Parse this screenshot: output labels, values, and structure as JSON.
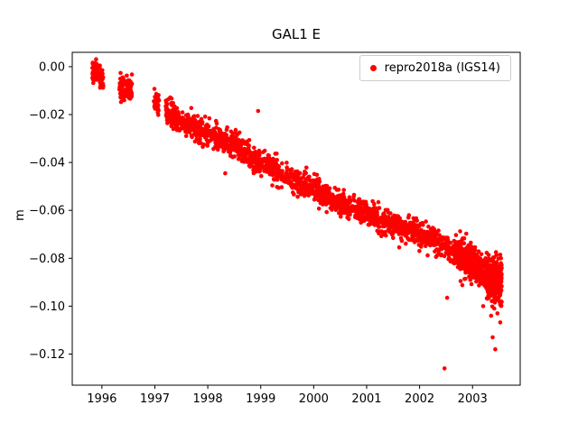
{
  "chart_data": {
    "type": "scatter",
    "title": "GAL1 E",
    "xlabel": "",
    "ylabel": "m",
    "xlim": [
      1995.44,
      2003.9
    ],
    "ylim": [
      -0.133,
      0.006
    ],
    "xticks": [
      1996,
      1997,
      1998,
      1999,
      2000,
      2001,
      2002,
      2003
    ],
    "yticks": [
      0.0,
      -0.02,
      -0.04,
      -0.06,
      -0.08,
      -0.1,
      -0.12
    ],
    "grid": false,
    "legend_position": "upper right",
    "series": [
      {
        "name": "repro2018a (IGS14)",
        "color": "#ff0000",
        "marker": "dot",
        "marker_radius_px": 2.3,
        "noise_std": 0.0025,
        "trend": [
          [
            1995.85,
            -0.002
          ],
          [
            1996.0,
            -0.006
          ],
          [
            1996.45,
            -0.009
          ],
          [
            1997.0,
            -0.014
          ],
          [
            1997.3,
            -0.02
          ],
          [
            1997.6,
            -0.024
          ],
          [
            1998.0,
            -0.028
          ],
          [
            1998.5,
            -0.033
          ],
          [
            1999.0,
            -0.04
          ],
          [
            1999.5,
            -0.046
          ],
          [
            2000.0,
            -0.051
          ],
          [
            2000.5,
            -0.057
          ],
          [
            2001.0,
            -0.061
          ],
          [
            2001.5,
            -0.066
          ],
          [
            2002.0,
            -0.07
          ],
          [
            2002.5,
            -0.075
          ],
          [
            2003.0,
            -0.082
          ],
          [
            2003.3,
            -0.088
          ],
          [
            2003.55,
            -0.09
          ]
        ],
        "segments": [
          [
            1995.82,
            1995.92,
            45,
            1.0
          ],
          [
            1995.95,
            1996.03,
            45,
            1.0
          ],
          [
            1996.33,
            1996.44,
            60,
            1.0
          ],
          [
            1996.46,
            1996.57,
            60,
            1.0
          ],
          [
            1996.98,
            1997.08,
            45,
            0.8
          ],
          [
            1997.2,
            2002.7,
            1700,
            1.0
          ],
          [
            2002.7,
            2003.3,
            420,
            1.4
          ],
          [
            2003.28,
            2003.55,
            260,
            2.0
          ]
        ],
        "outliers": [
          [
            1998.33,
            -0.0445
          ],
          [
            1998.95,
            -0.0185
          ],
          [
            2002.47,
            -0.126
          ],
          [
            2002.52,
            -0.0965
          ],
          [
            2003.2,
            -0.1
          ],
          [
            2003.35,
            -0.104
          ],
          [
            2003.38,
            -0.113
          ],
          [
            2003.43,
            -0.118
          ],
          [
            2003.47,
            -0.103
          ]
        ]
      }
    ]
  }
}
